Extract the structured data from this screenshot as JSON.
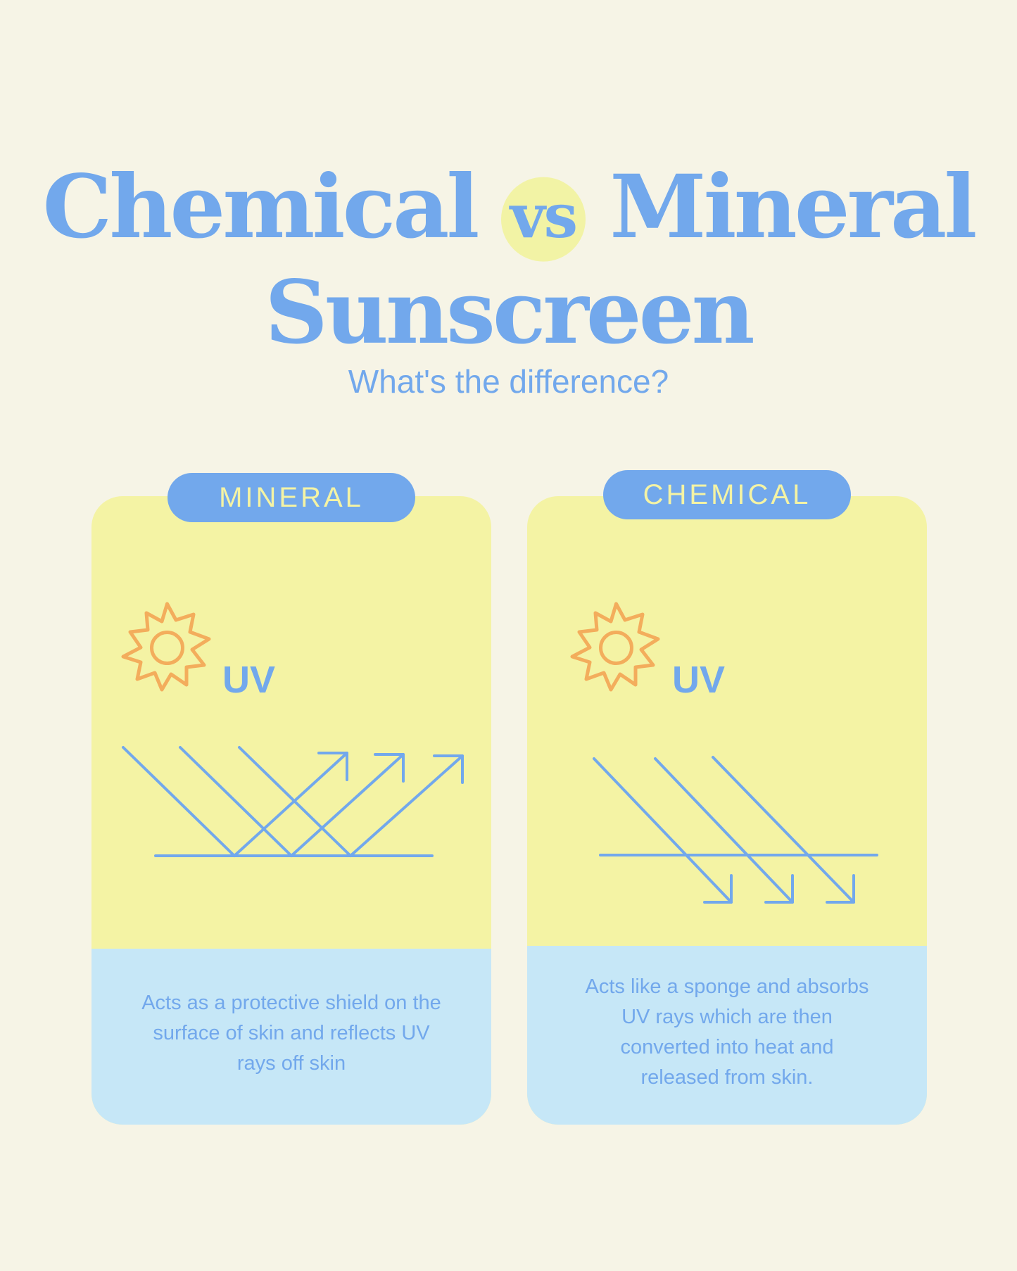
{
  "title": {
    "left": "Chemical",
    "vs": "vs",
    "right": "Mineral",
    "line2": "Sunscreen"
  },
  "subtitle": "What's the difference?",
  "cards": [
    {
      "label": "MINERAL",
      "uv_label": "UV",
      "description": "Acts as a protective shield on the surface of skin and reflects UV rays off skin",
      "diagram": "reflect"
    },
    {
      "label": "CHEMICAL",
      "uv_label": "UV",
      "description": "Acts like a sponge and absorbs UV rays which are then converted into heat and released from skin.",
      "diagram": "absorb"
    }
  ],
  "colors": {
    "background": "#f6f4e6",
    "primary_blue": "#72a8ec",
    "yellow": "#f4f3a4",
    "light_blue": "#c6e7f7",
    "sun_orange": "#f3ad5c"
  }
}
